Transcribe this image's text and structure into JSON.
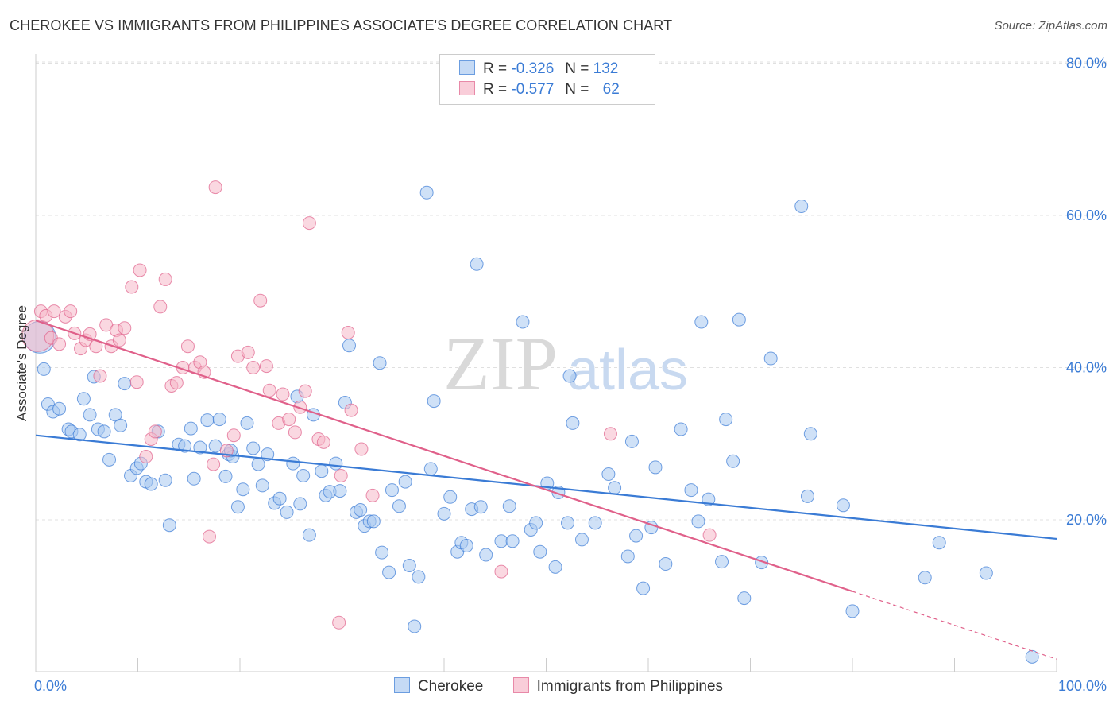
{
  "header": {
    "title": "CHEROKEE VS IMMIGRANTS FROM PHILIPPINES ASSOCIATE'S DEGREE CORRELATION CHART",
    "source": "Source: ZipAtlas.com"
  },
  "watermark": {
    "zip": "ZIP",
    "atlas": "atlas"
  },
  "legend": {
    "rows": [
      {
        "r_label": "R =",
        "r_value": "-0.326",
        "n_label": "N =",
        "n_value": "132",
        "color": "#a8c8f0"
      },
      {
        "r_label": "R =",
        "r_value": "-0.577",
        "n_label": "N =",
        "n_value": "62",
        "color": "#f5b8c8"
      }
    ]
  },
  "chart_data": {
    "type": "scatter",
    "title": "CHEROKEE VS IMMIGRANTS FROM PHILIPPINES ASSOCIATE'S DEGREE CORRELATION CHART",
    "xlabel": "",
    "ylabel": "Associate's Degree",
    "xlim": [
      0,
      100
    ],
    "ylim": [
      0,
      85
    ],
    "x_tick_labels": [
      "0.0%",
      "100.0%"
    ],
    "y_ticks": [
      20,
      40,
      60,
      80
    ],
    "y_tick_labels": [
      "20.0%",
      "40.0%",
      "60.0%",
      "80.0%"
    ],
    "grid": true,
    "legend_position": "top-center",
    "series": [
      {
        "name": "Cherokee",
        "color": "#3a7bd5",
        "fill": "#a8c8f0",
        "trend": {
          "x": [
            0,
            100
          ],
          "y": [
            31.1,
            17.5
          ]
        },
        "points": [
          [
            0.4,
            44.0
          ],
          [
            0.8,
            39.8
          ],
          [
            1.2,
            35.2
          ],
          [
            1.7,
            34.2
          ],
          [
            2.3,
            34.6
          ],
          [
            3.2,
            31.9
          ],
          [
            3.5,
            31.6
          ],
          [
            4.3,
            31.2
          ],
          [
            4.7,
            35.9
          ],
          [
            5.3,
            33.8
          ],
          [
            5.7,
            38.8
          ],
          [
            6.1,
            31.9
          ],
          [
            6.7,
            31.6
          ],
          [
            7.2,
            27.9
          ],
          [
            7.8,
            33.8
          ],
          [
            8.3,
            32.4
          ],
          [
            8.7,
            37.9
          ],
          [
            9.3,
            25.8
          ],
          [
            9.9,
            26.8
          ],
          [
            10.3,
            27.4
          ],
          [
            10.8,
            25.0
          ],
          [
            11.3,
            24.7
          ],
          [
            12.0,
            31.6
          ],
          [
            12.7,
            25.2
          ],
          [
            13.1,
            19.3
          ],
          [
            14.0,
            29.9
          ],
          [
            14.6,
            29.7
          ],
          [
            15.2,
            32.0
          ],
          [
            15.5,
            25.4
          ],
          [
            16.1,
            29.5
          ],
          [
            16.8,
            33.1
          ],
          [
            17.6,
            29.7
          ],
          [
            18.0,
            33.2
          ],
          [
            18.6,
            25.7
          ],
          [
            18.9,
            28.6
          ],
          [
            19.3,
            28.3
          ],
          [
            19.1,
            29.1
          ],
          [
            19.8,
            21.7
          ],
          [
            20.3,
            24.0
          ],
          [
            20.7,
            32.7
          ],
          [
            21.3,
            29.4
          ],
          [
            21.8,
            27.3
          ],
          [
            22.2,
            24.5
          ],
          [
            22.7,
            28.6
          ],
          [
            23.4,
            22.2
          ],
          [
            23.9,
            22.8
          ],
          [
            24.6,
            21.0
          ],
          [
            25.2,
            27.4
          ],
          [
            25.6,
            36.2
          ],
          [
            25.9,
            22.1
          ],
          [
            26.2,
            25.8
          ],
          [
            26.8,
            18.0
          ],
          [
            27.2,
            33.8
          ],
          [
            28.0,
            26.4
          ],
          [
            28.4,
            23.2
          ],
          [
            28.8,
            23.7
          ],
          [
            29.4,
            27.4
          ],
          [
            29.8,
            23.8
          ],
          [
            30.3,
            35.4
          ],
          [
            30.7,
            42.9
          ],
          [
            31.4,
            21.0
          ],
          [
            31.8,
            21.3
          ],
          [
            32.2,
            19.2
          ],
          [
            32.7,
            19.8
          ],
          [
            33.1,
            19.8
          ],
          [
            33.7,
            40.6
          ],
          [
            33.9,
            15.7
          ],
          [
            34.6,
            13.1
          ],
          [
            34.9,
            23.9
          ],
          [
            35.6,
            21.8
          ],
          [
            36.2,
            25.0
          ],
          [
            36.6,
            14.0
          ],
          [
            37.1,
            6.0
          ],
          [
            37.5,
            12.5
          ],
          [
            38.3,
            63.0
          ],
          [
            38.7,
            26.7
          ],
          [
            39.0,
            35.6
          ],
          [
            40.0,
            20.8
          ],
          [
            40.6,
            23.0
          ],
          [
            41.3,
            15.8
          ],
          [
            41.7,
            17.0
          ],
          [
            42.2,
            16.6
          ],
          [
            42.7,
            21.4
          ],
          [
            43.2,
            53.6
          ],
          [
            43.6,
            21.7
          ],
          [
            44.1,
            15.4
          ],
          [
            45.6,
            17.2
          ],
          [
            46.4,
            21.8
          ],
          [
            46.7,
            17.2
          ],
          [
            47.7,
            46.0
          ],
          [
            48.5,
            18.7
          ],
          [
            49.0,
            19.6
          ],
          [
            49.4,
            15.8
          ],
          [
            50.1,
            24.8
          ],
          [
            50.9,
            13.8
          ],
          [
            51.2,
            23.6
          ],
          [
            52.1,
            19.6
          ],
          [
            52.3,
            38.9
          ],
          [
            52.6,
            32.7
          ],
          [
            53.5,
            17.4
          ],
          [
            54.8,
            19.6
          ],
          [
            56.1,
            26.0
          ],
          [
            56.7,
            24.2
          ],
          [
            58.0,
            15.2
          ],
          [
            58.4,
            30.3
          ],
          [
            58.8,
            17.9
          ],
          [
            59.5,
            11.0
          ],
          [
            60.3,
            19.0
          ],
          [
            60.7,
            26.9
          ],
          [
            61.7,
            14.2
          ],
          [
            63.2,
            31.9
          ],
          [
            64.2,
            23.9
          ],
          [
            64.9,
            19.8
          ],
          [
            65.2,
            46.0
          ],
          [
            65.9,
            22.7
          ],
          [
            67.2,
            14.5
          ],
          [
            67.6,
            33.2
          ],
          [
            68.3,
            27.7
          ],
          [
            68.9,
            46.3
          ],
          [
            69.4,
            9.7
          ],
          [
            71.1,
            14.4
          ],
          [
            72.0,
            41.2
          ],
          [
            75.0,
            61.2
          ],
          [
            75.6,
            23.1
          ],
          [
            75.9,
            31.3
          ],
          [
            79.1,
            21.9
          ],
          [
            80.0,
            8.0
          ],
          [
            87.1,
            12.4
          ],
          [
            88.5,
            17.0
          ],
          [
            93.1,
            13.0
          ],
          [
            97.6,
            2.0
          ]
        ]
      },
      {
        "name": "Immigrants from Philippines",
        "color": "#e0608a",
        "fill": "#f5b8c8",
        "trend": {
          "x": [
            0,
            80
          ],
          "y": [
            46.2,
            10.6
          ]
        },
        "trend_dashed": {
          "x": [
            80,
            100
          ],
          "y": [
            10.6,
            1.7
          ]
        },
        "points": [
          [
            0.2,
            44.2
          ],
          [
            0.5,
            47.4
          ],
          [
            1.0,
            46.8
          ],
          [
            1.5,
            43.9
          ],
          [
            1.8,
            47.4
          ],
          [
            2.3,
            43.1
          ],
          [
            2.9,
            46.7
          ],
          [
            3.4,
            47.4
          ],
          [
            3.8,
            44.5
          ],
          [
            4.4,
            42.5
          ],
          [
            4.9,
            43.6
          ],
          [
            5.3,
            44.4
          ],
          [
            5.9,
            42.8
          ],
          [
            6.3,
            38.9
          ],
          [
            6.9,
            45.6
          ],
          [
            7.4,
            42.8
          ],
          [
            7.9,
            44.9
          ],
          [
            8.2,
            43.6
          ],
          [
            8.7,
            45.2
          ],
          [
            9.4,
            50.6
          ],
          [
            9.9,
            38.1
          ],
          [
            10.2,
            52.8
          ],
          [
            10.8,
            28.3
          ],
          [
            11.3,
            30.6
          ],
          [
            11.7,
            31.6
          ],
          [
            12.2,
            48.0
          ],
          [
            12.7,
            51.6
          ],
          [
            13.3,
            37.6
          ],
          [
            13.8,
            38.0
          ],
          [
            14.4,
            40.0
          ],
          [
            14.9,
            42.8
          ],
          [
            15.6,
            40.0
          ],
          [
            16.1,
            40.7
          ],
          [
            16.5,
            39.4
          ],
          [
            17.0,
            17.8
          ],
          [
            17.4,
            27.3
          ],
          [
            17.6,
            63.7
          ],
          [
            18.7,
            29.1
          ],
          [
            19.4,
            31.1
          ],
          [
            19.8,
            41.5
          ],
          [
            20.8,
            42.0
          ],
          [
            21.3,
            40.0
          ],
          [
            22.0,
            48.8
          ],
          [
            22.6,
            40.2
          ],
          [
            22.9,
            37.0
          ],
          [
            23.8,
            32.7
          ],
          [
            24.2,
            36.5
          ],
          [
            24.8,
            33.2
          ],
          [
            25.4,
            31.5
          ],
          [
            25.9,
            34.8
          ],
          [
            26.4,
            36.9
          ],
          [
            26.8,
            59.0
          ],
          [
            27.7,
            30.6
          ],
          [
            28.2,
            30.2
          ],
          [
            29.7,
            6.5
          ],
          [
            29.9,
            25.8
          ],
          [
            30.6,
            44.6
          ],
          [
            30.9,
            34.4
          ],
          [
            31.9,
            29.3
          ],
          [
            33.0,
            23.2
          ],
          [
            45.6,
            13.2
          ],
          [
            56.3,
            31.3
          ],
          [
            66.0,
            18.0
          ]
        ]
      }
    ]
  }
}
